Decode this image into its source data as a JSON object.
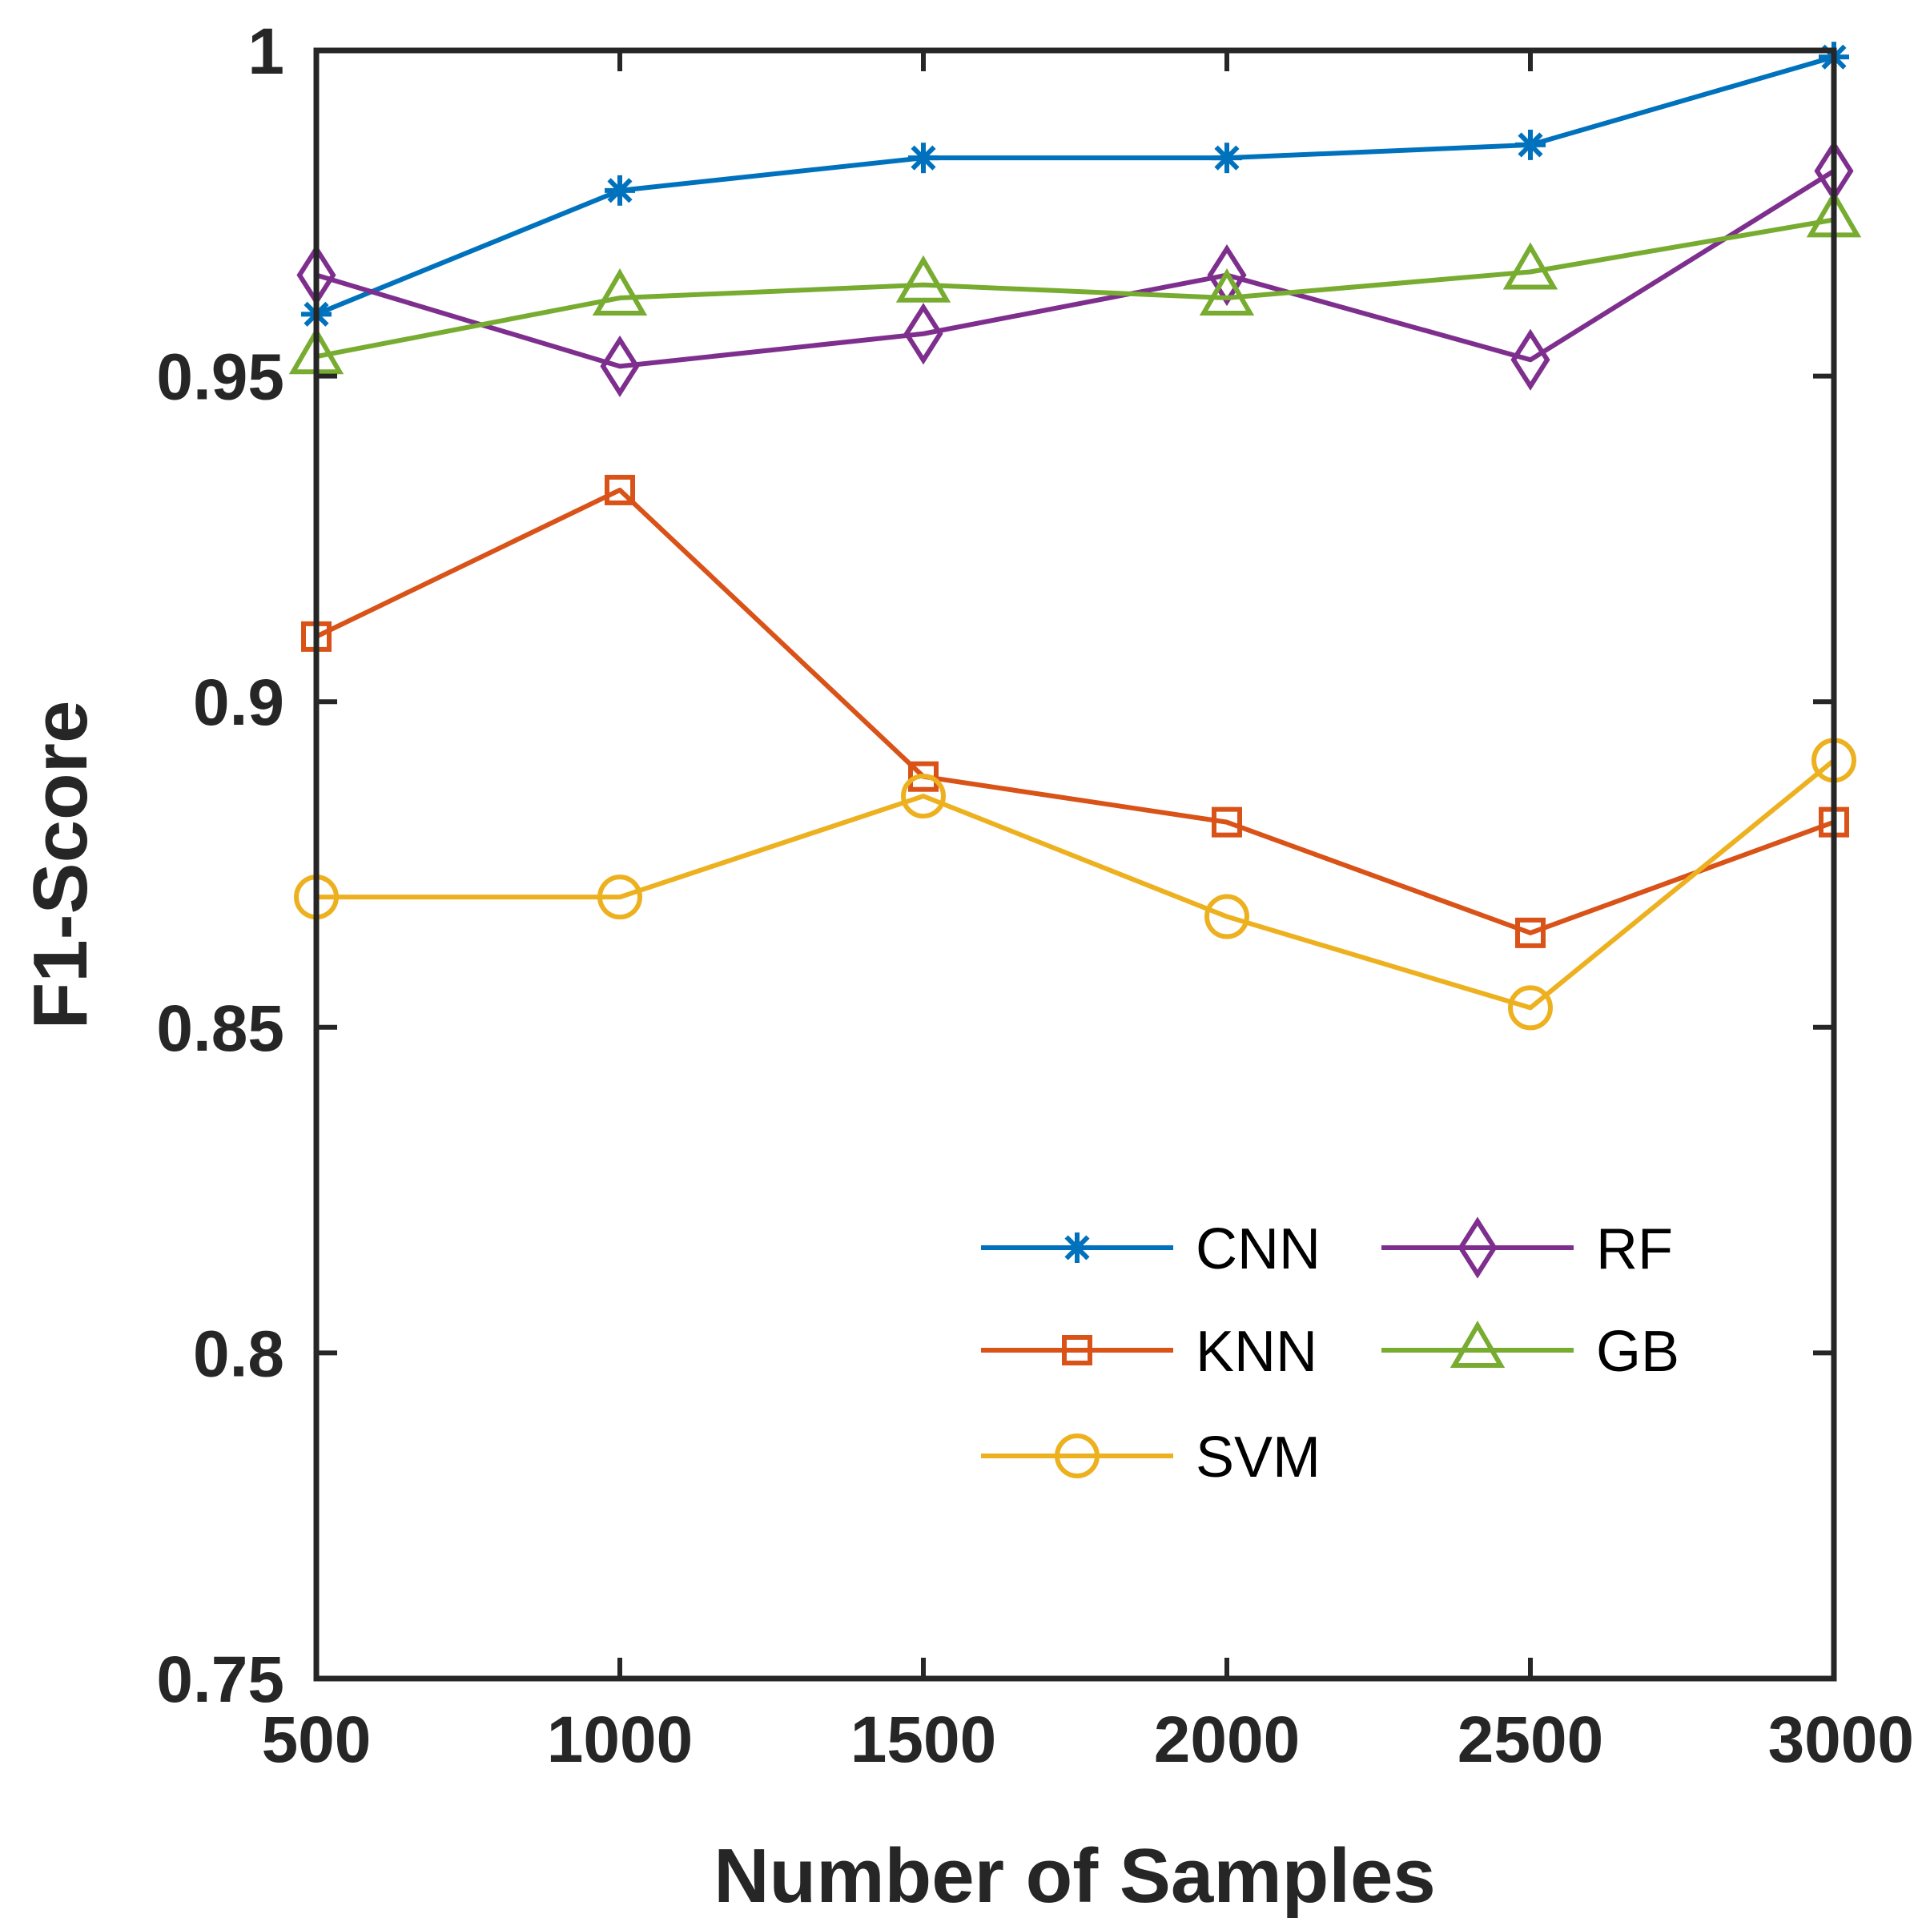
{
  "chart_data": {
    "type": "line",
    "xlabel": "Number of Samples",
    "ylabel": "F1-Score",
    "xlim": [
      500,
      3000
    ],
    "ylim": [
      0.75,
      1
    ],
    "x": [
      500,
      1000,
      1500,
      2000,
      2500,
      3000
    ],
    "xticks": [
      500,
      1000,
      1500,
      2000,
      2500,
      3000
    ],
    "xtick_labels": [
      "500",
      "1000",
      "1500",
      "2000",
      "2500",
      "3000"
    ],
    "yticks": [
      0.75,
      0.8,
      0.85,
      0.9,
      0.95,
      1
    ],
    "ytick_labels": [
      "0.75",
      "0.8",
      "0.85",
      "0.9",
      "0.95",
      "1"
    ],
    "grid": false,
    "legend_position": "bottom-right",
    "series": [
      {
        "name": "CNN",
        "marker": "asterisk",
        "color": "#0072BD",
        "values": [
          0.9595,
          0.9785,
          0.9835,
          0.9835,
          0.9855,
          0.999
        ]
      },
      {
        "name": "KNN",
        "marker": "square",
        "color": "#D95319",
        "values": [
          0.91,
          0.9325,
          0.8885,
          0.8815,
          0.8645,
          0.8815
        ]
      },
      {
        "name": "SVM",
        "marker": "circle",
        "color": "#EDB120",
        "values": [
          0.87,
          0.87,
          0.8855,
          0.867,
          0.853,
          0.891
        ]
      },
      {
        "name": "RF",
        "marker": "diamond",
        "color": "#7E2F8E",
        "values": [
          0.9655,
          0.9515,
          0.9565,
          0.9655,
          0.9525,
          0.9815
        ]
      },
      {
        "name": "GB",
        "marker": "triangle",
        "color": "#77AC30",
        "values": [
          0.953,
          0.962,
          0.964,
          0.962,
          0.966,
          0.974
        ]
      }
    ]
  }
}
